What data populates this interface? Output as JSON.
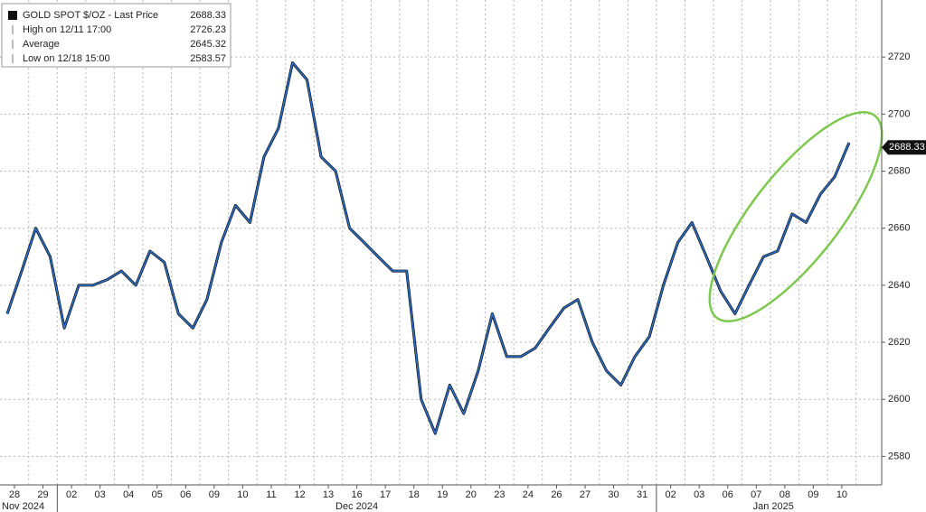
{
  "chart_data": {
    "type": "line",
    "legend_items": [
      {
        "label": "GOLD SPOT $/OZ - Last Price",
        "value": "2688.33"
      },
      {
        "label": "High on 12/11 17:00",
        "value": "2726.23"
      },
      {
        "label": "Average",
        "value": "2645.32"
      },
      {
        "label": "Low on 12/18 15:00",
        "value": "2583.57"
      }
    ],
    "last_price_tag": 2688.33,
    "month_labels": [
      "Nov 2024",
      "Dec 2024",
      "Jan 2025"
    ],
    "categories": [
      "28",
      null,
      "29",
      null,
      "02",
      null,
      "03",
      null,
      "04",
      null,
      "05",
      null,
      "06",
      null,
      "09",
      null,
      "10",
      null,
      "11",
      null,
      "12",
      null,
      "13",
      null,
      "16",
      null,
      "17",
      null,
      "18",
      null,
      "19",
      null,
      "20",
      null,
      "23",
      null,
      "24",
      null,
      "26",
      null,
      "27",
      null,
      "30",
      null,
      "31",
      null,
      "02",
      null,
      "03",
      null,
      "06",
      null,
      "07",
      null,
      "08",
      null,
      "09",
      null,
      "10",
      null
    ],
    "series": [
      {
        "name": "GOLD SPOT $/OZ",
        "color": "#2a6fc9",
        "values": [
          2630,
          2645,
          2660,
          2650,
          2625,
          2640,
          2640,
          2642,
          2645,
          2640,
          2652,
          2648,
          2630,
          2625,
          2635,
          2655,
          2668,
          2662,
          2685,
          2695,
          2718,
          2712,
          2685,
          2680,
          2660,
          2655,
          2650,
          2645,
          2645,
          2600,
          2588,
          2605,
          2595,
          2610,
          2630,
          2615,
          2615,
          2618,
          2625,
          2632,
          2635,
          2620,
          2610,
          2605,
          2615,
          2622,
          2640,
          2655,
          2662,
          2650,
          2638,
          2630,
          2640,
          2650,
          2652,
          2665,
          2662,
          2672,
          2678,
          2690
        ]
      }
    ],
    "ylim": [
      2570,
      2740
    ],
    "yticks": [
      2580,
      2600,
      2620,
      2640,
      2660,
      2680,
      2700,
      2720
    ],
    "grid": true
  }
}
